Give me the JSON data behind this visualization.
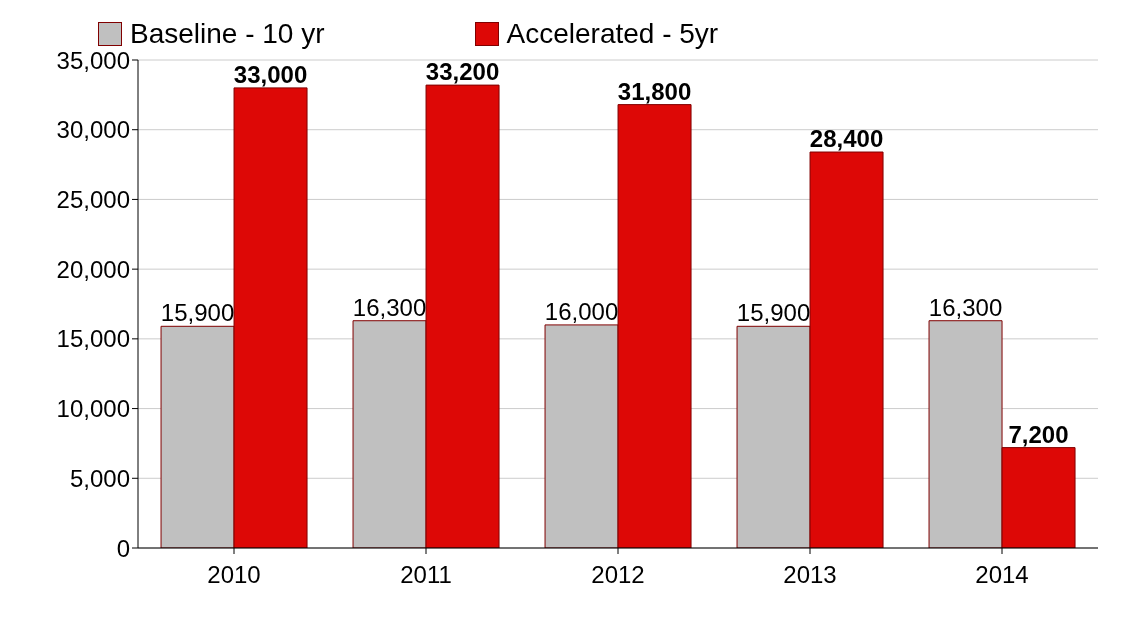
{
  "chart_data": {
    "type": "bar",
    "categories": [
      "2010",
      "2011",
      "2012",
      "2013",
      "2014"
    ],
    "series": [
      {
        "name": "Baseline - 10 yr",
        "color": "#c0c0c0",
        "values": [
          15900,
          16300,
          16000,
          15900,
          16300
        ],
        "value_labels": [
          "15,900",
          "16,300",
          "16,000",
          "15,900",
          "16,300"
        ]
      },
      {
        "name": "Accelerated - 5yr",
        "color": "#dd0806",
        "values": [
          33000,
          33200,
          31800,
          28400,
          7200
        ],
        "value_labels": [
          "33,000",
          "33,200",
          "31,800",
          "28,400",
          "7,200"
        ]
      }
    ],
    "ylim": [
      0,
      35000
    ],
    "yticks": [
      {
        "value": 0,
        "label": "0"
      },
      {
        "value": 5000,
        "label": "5,000"
      },
      {
        "value": 10000,
        "label": "10,000"
      },
      {
        "value": 15000,
        "label": "15,000"
      },
      {
        "value": 20000,
        "label": "20,000"
      },
      {
        "value": 25000,
        "label": "25,000"
      },
      {
        "value": 30000,
        "label": "30,000"
      },
      {
        "value": 35000,
        "label": "35,000"
      }
    ],
    "grid": "y",
    "legend": "top left"
  }
}
